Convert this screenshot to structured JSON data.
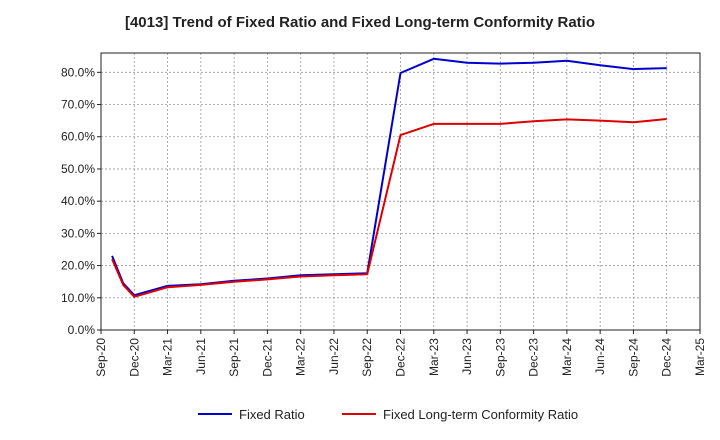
{
  "chart_data": {
    "type": "line",
    "title": "[4013]  Trend of Fixed Ratio and Fixed Long-term Conformity Ratio",
    "xlabel": "",
    "ylabel": "",
    "ylim": [
      0,
      86
    ],
    "y_ticks": [
      "0.0%",
      "10.0%",
      "20.0%",
      "30.0%",
      "40.0%",
      "50.0%",
      "60.0%",
      "70.0%",
      "80.0%"
    ],
    "y_tick_values": [
      0,
      10,
      20,
      30,
      40,
      50,
      60,
      70,
      80
    ],
    "x_ticks": [
      "Sep-20",
      "Dec-20",
      "Mar-21",
      "Jun-21",
      "Sep-21",
      "Dec-21",
      "Mar-22",
      "Jun-22",
      "Sep-22",
      "Dec-22",
      "Mar-23",
      "Jun-23",
      "Sep-23",
      "Dec-23",
      "Mar-24",
      "Jun-24",
      "Sep-24",
      "Dec-24",
      "Mar-25"
    ],
    "x_tick_index": [
      0,
      3,
      6,
      9,
      12,
      15,
      18,
      21,
      24,
      27,
      30,
      33,
      36,
      39,
      42,
      45,
      48,
      51,
      54
    ],
    "xlim_index": [
      0,
      54
    ],
    "grid": true,
    "legend": "bottom",
    "series": [
      {
        "name": "Fixed Ratio",
        "color": "#0000cc",
        "x_index": [
          1,
          2,
          3,
          6,
          9,
          12,
          15,
          18,
          21,
          24,
          27,
          30,
          33,
          36,
          39,
          42,
          45,
          48,
          51
        ],
        "values": [
          23.0,
          14.5,
          10.8,
          13.7,
          14.2,
          15.3,
          16.0,
          17.0,
          17.3,
          17.6,
          79.8,
          84.2,
          83.0,
          82.7,
          83.0,
          83.6,
          82.2,
          81.0,
          81.3
        ]
      },
      {
        "name": "Fixed Long-term Conformity Ratio",
        "color": "#dd0000",
        "x_index": [
          1,
          2,
          3,
          6,
          9,
          12,
          15,
          18,
          21,
          24,
          27,
          30,
          33,
          36,
          39,
          42,
          45,
          48,
          51
        ],
        "values": [
          22.0,
          14.0,
          10.3,
          13.3,
          14.0,
          15.0,
          15.7,
          16.6,
          17.0,
          17.3,
          60.5,
          64.0,
          64.0,
          64.0,
          64.8,
          65.4,
          65.0,
          64.5,
          65.5
        ]
      }
    ]
  }
}
